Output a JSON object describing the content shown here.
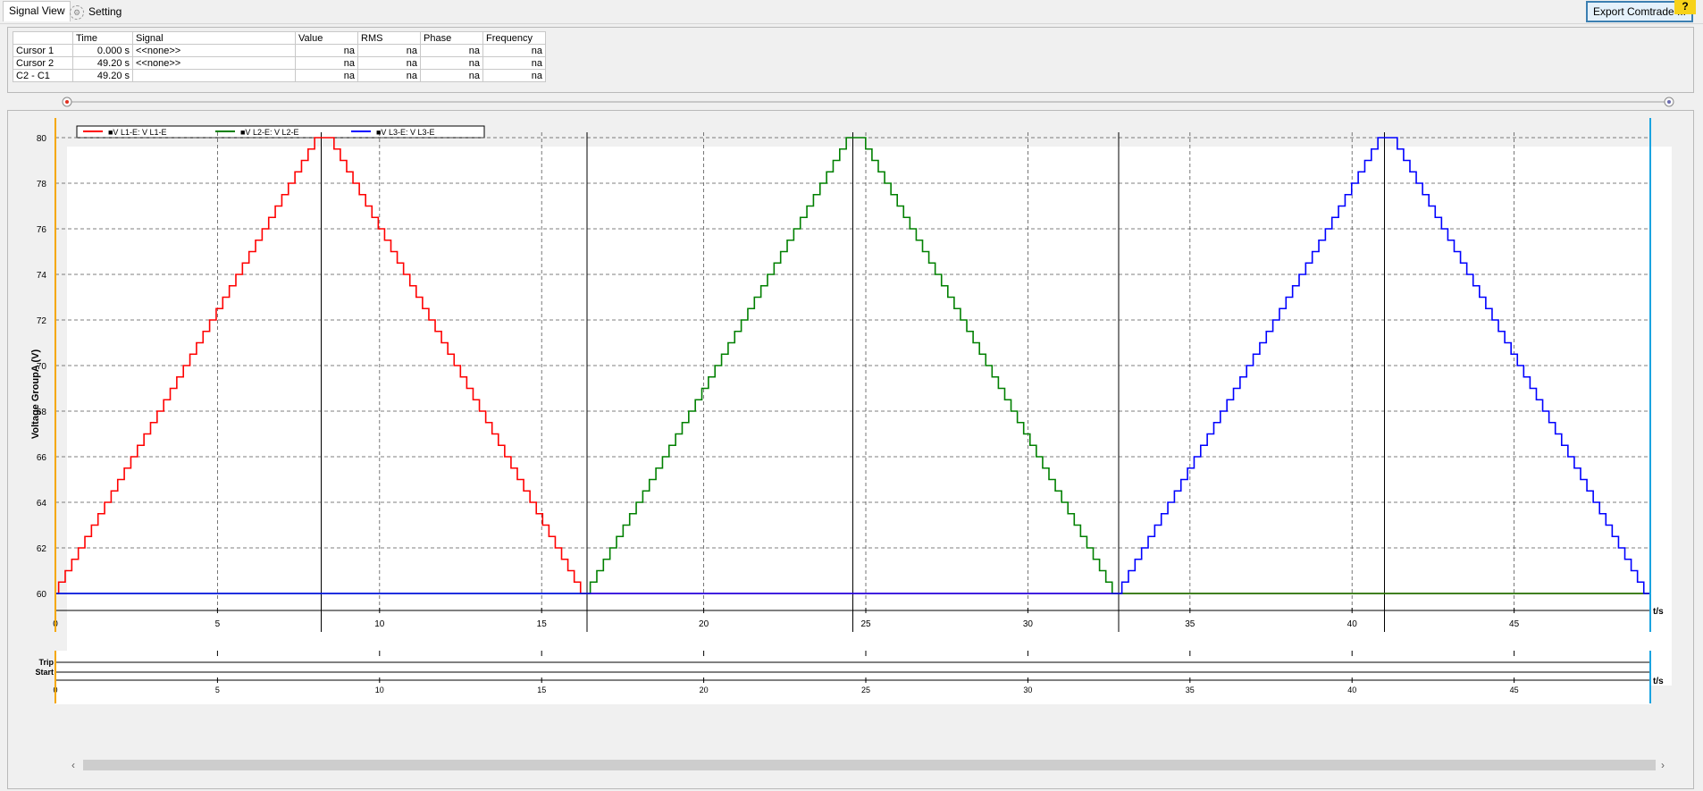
{
  "tabs": [
    {
      "label": "Signal View",
      "icon": ""
    },
    {
      "label": "Setting",
      "icon": "gear-icon"
    }
  ],
  "toolbar": {
    "export_label": "Export Comtrade ...",
    "help_label": "?"
  },
  "cursor_table": {
    "headers": [
      "",
      "Time",
      "Signal",
      "Value",
      "RMS",
      "Phase",
      "Frequency"
    ],
    "rows": [
      {
        "name": "Cursor 1",
        "time": "0.000 s",
        "signal": "<<none>>",
        "value": "na",
        "rms": "na",
        "phase": "na",
        "frequency": "na"
      },
      {
        "name": "Cursor 2",
        "time": "49.20 s",
        "signal": "<<none>>",
        "value": "na",
        "rms": "na",
        "phase": "na",
        "frequency": "na"
      },
      {
        "name": "C2 - C1",
        "time": "49.20 s",
        "signal": "",
        "value": "na",
        "rms": "na",
        "phase": "na",
        "frequency": "na"
      }
    ]
  },
  "chart_data": {
    "type": "line",
    "ylabel": "Voltage GroupA (V)",
    "xlabel": "t/s",
    "xlim": [
      0,
      49.2
    ],
    "ylim": [
      60,
      80
    ],
    "xticks": [
      0,
      5,
      10,
      15,
      20,
      25,
      30,
      35,
      40,
      45
    ],
    "yticks": [
      60,
      62,
      64,
      66,
      68,
      70,
      72,
      74,
      76,
      78,
      80
    ],
    "grid": true,
    "legend_position": "top-left",
    "step_v": 0.5,
    "vertical_markers": [
      8.2,
      16.4,
      24.6,
      32.8,
      41.0
    ],
    "series": [
      {
        "name": "V L1-E: V L1-E",
        "color": "#ff0000",
        "points": [
          [
            0,
            60
          ],
          [
            0.1,
            60
          ],
          [
            8.2,
            80
          ],
          [
            8.4,
            80
          ],
          [
            16.2,
            60
          ],
          [
            49.2,
            60
          ]
        ]
      },
      {
        "name": "V L2-E: V L2-E",
        "color": "#008000",
        "points": [
          [
            0,
            60
          ],
          [
            16.5,
            60
          ],
          [
            24.6,
            80
          ],
          [
            24.8,
            80
          ],
          [
            32.6,
            60
          ],
          [
            49.2,
            60
          ]
        ]
      },
      {
        "name": "V L3-E: V L3-E",
        "color": "#0000ff",
        "points": [
          [
            0,
            60
          ],
          [
            32.9,
            60
          ],
          [
            41.0,
            80
          ],
          [
            41.2,
            80
          ],
          [
            49.0,
            60
          ],
          [
            49.2,
            60
          ]
        ]
      }
    ]
  },
  "binary_chart": {
    "labels": [
      "Trip",
      "Start"
    ],
    "xlabel": "t/s"
  },
  "cursor_colors": {
    "cursor1": "#f5a800",
    "cursor2": "#1aa3e0"
  }
}
